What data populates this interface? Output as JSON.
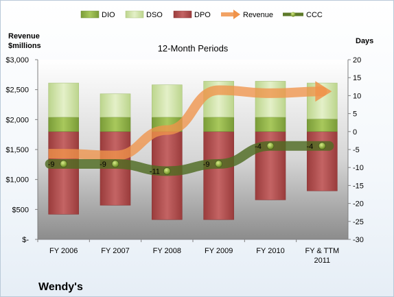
{
  "chart_data": {
    "type": "bar",
    "title": "12-Month Periods",
    "company": "Wendy's",
    "left_axis_label_line1": "Revenue",
    "left_axis_label_line2": "$millions",
    "right_axis_label": "Days",
    "categories": [
      "FY 2006",
      "FY 2007",
      "FY 2008",
      "FY 2009",
      "FY 2010",
      "FY & TTM 2011"
    ],
    "left_ylim": [
      0,
      3000
    ],
    "left_ticks": [
      0,
      500,
      1000,
      1500,
      2000,
      2500,
      3000
    ],
    "left_tick_labels": [
      "$-",
      "$500",
      "$1,000",
      "$1,500",
      "$2,000",
      "$2,500",
      "$3,000"
    ],
    "right_ylim": [
      -30,
      20
    ],
    "right_ticks": [
      -30,
      -25,
      -20,
      -15,
      -10,
      -5,
      0,
      5,
      10,
      15,
      20
    ],
    "right_tick_labels": [
      "-30",
      "-25",
      "-20",
      "-15",
      "-10",
      "-5",
      "0",
      "5",
      "10",
      "15",
      "20"
    ],
    "series": [
      {
        "name": "DIO",
        "axis": "right",
        "base": 0,
        "values": [
          4,
          4,
          4,
          4,
          4,
          3.5
        ],
        "color": "#8db048"
      },
      {
        "name": "DSO",
        "axis": "right",
        "base_from": "DIO",
        "values": [
          9.5,
          6.5,
          9,
          10,
          10,
          10
        ],
        "color": "#cfe3a6"
      },
      {
        "name": "DPO",
        "axis": "right",
        "values": [
          -23,
          -20.5,
          -24.5,
          -24.5,
          -19,
          -16.5
        ],
        "color": "#b04a4a"
      },
      {
        "name": "Revenue",
        "axis": "left",
        "values": [
          1430,
          1400,
          1825,
          2490,
          2440,
          2470
        ],
        "color": "#f0934a"
      },
      {
        "name": "CCC",
        "axis": "right",
        "values": [
          -9,
          -9,
          -11,
          -9,
          -4,
          -4
        ],
        "labels": [
          "-9",
          "-9",
          "-11",
          "-9",
          "-4",
          "-4"
        ],
        "color": "#5d7a2a"
      }
    ],
    "legend_position": "top",
    "grid": false
  }
}
